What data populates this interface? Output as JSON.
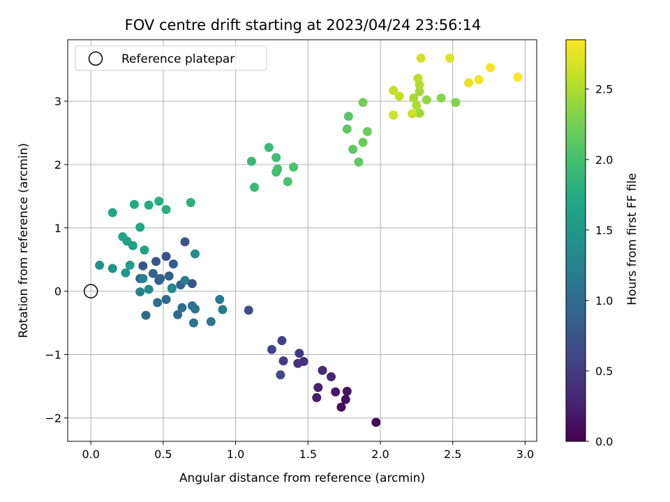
{
  "chart_data": {
    "type": "scatter",
    "title": "FOV centre drift starting at 2023/04/24 23:56:14",
    "xlabel": "Angular distance from reference (arcmin)",
    "ylabel": "Rotation from reference (arcmin)",
    "xlim": [
      -0.16,
      3.08
    ],
    "ylim": [
      -2.37,
      3.97
    ],
    "x_ticks": [
      0.0,
      0.5,
      1.0,
      1.5,
      2.0,
      2.5,
      3.0
    ],
    "x_tick_labels": [
      "0.0",
      "0.5",
      "1.0",
      "1.5",
      "2.0",
      "2.5",
      "3.0"
    ],
    "y_ticks": [
      -2,
      -1,
      0,
      1,
      2,
      3
    ],
    "y_tick_labels": [
      "−2",
      "−1",
      "0",
      "1",
      "2",
      "3"
    ],
    "grid": true,
    "legend": {
      "placement": "upper-left",
      "entries": [
        "Reference platepar"
      ]
    },
    "reference_point": {
      "x": 0.0,
      "y": 0.0,
      "marker": "open-circle"
    },
    "colorbar": {
      "label": "Hours from first FF file",
      "colormap": "viridis",
      "range": [
        0.0,
        2.85
      ],
      "ticks": [
        0.0,
        0.5,
        1.0,
        1.5,
        2.0,
        2.5
      ],
      "tick_labels": [
        "0.0",
        "0.5",
        "1.0",
        "1.5",
        "2.0",
        "2.5"
      ]
    },
    "series": [
      {
        "x": [
          1.97,
          1.73,
          1.76,
          1.77,
          1.69,
          1.56,
          1.57,
          1.66,
          1.6,
          1.47,
          1.43,
          1.44,
          1.33,
          1.32,
          1.25,
          1.31,
          1.09
        ],
        "y": [
          -2.07,
          -1.83,
          -1.71,
          -1.58,
          -1.59,
          -1.68,
          -1.52,
          -1.35,
          -1.25,
          -1.11,
          -1.14,
          -0.98,
          -1.1,
          -0.78,
          -0.92,
          -1.32,
          -0.3
        ],
        "c": [
          0.02,
          0.06,
          0.1,
          0.14,
          0.18,
          0.22,
          0.26,
          0.3,
          0.34,
          0.38,
          0.42,
          0.46,
          0.5,
          0.54,
          0.58,
          0.62,
          0.66
        ]
      },
      {
        "x": [
          0.52,
          0.65,
          0.7,
          0.36,
          0.45,
          0.57,
          0.48,
          0.54,
          0.62,
          0.43,
          0.47,
          0.34,
          0.56,
          0.52,
          0.38,
          0.46,
          0.6,
          0.63,
          0.7,
          0.72,
          0.71,
          0.83,
          0.91,
          0.89
        ],
        "y": [
          0.55,
          0.78,
          0.12,
          0.4,
          0.47,
          0.43,
          0.2,
          0.24,
          0.1,
          0.28,
          0.17,
          0.2,
          0.05,
          -0.13,
          -0.38,
          -0.18,
          -0.37,
          -0.26,
          -0.23,
          -0.28,
          -0.5,
          -0.48,
          -0.29,
          -0.13
        ],
        "c": [
          0.7,
          0.72,
          0.74,
          0.76,
          0.78,
          0.8,
          0.82,
          0.84,
          0.86,
          0.88,
          0.9,
          0.92,
          0.94,
          0.96,
          0.98,
          1.0,
          1.02,
          1.04,
          1.06,
          1.08,
          1.1,
          1.12,
          1.14,
          1.16
        ]
      },
      {
        "x": [
          0.65,
          0.36,
          0.34,
          0.4,
          0.56,
          0.72,
          0.06,
          0.15,
          0.24,
          0.27,
          0.29,
          0.37,
          0.25,
          0.22,
          0.34,
          0.15,
          0.3,
          0.4,
          0.47,
          0.52,
          0.69
        ],
        "y": [
          0.17,
          0.2,
          -0.01,
          0.03,
          0.04,
          0.59,
          0.41,
          0.36,
          0.29,
          0.41,
          0.72,
          0.65,
          0.79,
          0.86,
          1.01,
          1.24,
          1.37,
          1.36,
          1.42,
          1.29,
          1.4
        ],
        "c": [
          1.2,
          1.24,
          1.28,
          1.32,
          1.36,
          1.4,
          1.44,
          1.48,
          1.52,
          1.56,
          1.6,
          1.62,
          1.64,
          1.66,
          1.68,
          1.7,
          1.72,
          1.74,
          1.76,
          1.78,
          1.8
        ]
      },
      {
        "x": [
          1.11,
          1.13,
          1.23,
          1.28,
          1.28,
          1.29,
          1.36,
          1.4,
          1.78,
          1.77,
          1.81,
          1.85,
          1.88,
          1.91,
          1.88
        ],
        "y": [
          2.05,
          1.64,
          2.27,
          2.11,
          1.88,
          1.93,
          1.73,
          1.96,
          2.76,
          2.56,
          2.24,
          2.04,
          2.35,
          2.52,
          2.98
        ],
        "c": [
          1.9,
          1.92,
          1.94,
          1.96,
          1.98,
          2.0,
          2.02,
          2.04,
          2.1,
          2.12,
          2.14,
          2.16,
          2.18,
          2.2,
          2.22
        ]
      },
      {
        "x": [
          2.52,
          2.42,
          2.32,
          2.27,
          2.27,
          2.23,
          2.25,
          2.27,
          2.26,
          2.13,
          2.09,
          2.09,
          2.22
        ],
        "y": [
          2.98,
          3.05,
          3.02,
          2.81,
          3.15,
          3.05,
          2.93,
          3.26,
          3.36,
          3.08,
          3.17,
          2.78,
          2.8
        ],
        "c": [
          2.3,
          2.34,
          2.38,
          2.42,
          2.45,
          2.48,
          2.5,
          2.52,
          2.55,
          2.58,
          2.6,
          2.62,
          2.64
        ]
      },
      {
        "x": [
          2.28,
          2.48,
          2.61,
          2.68,
          2.76,
          2.95
        ],
        "y": [
          3.68,
          3.68,
          3.29,
          3.34,
          3.53,
          3.38
        ],
        "c": [
          2.66,
          2.7,
          2.74,
          2.78,
          2.82,
          2.84
        ]
      }
    ]
  }
}
